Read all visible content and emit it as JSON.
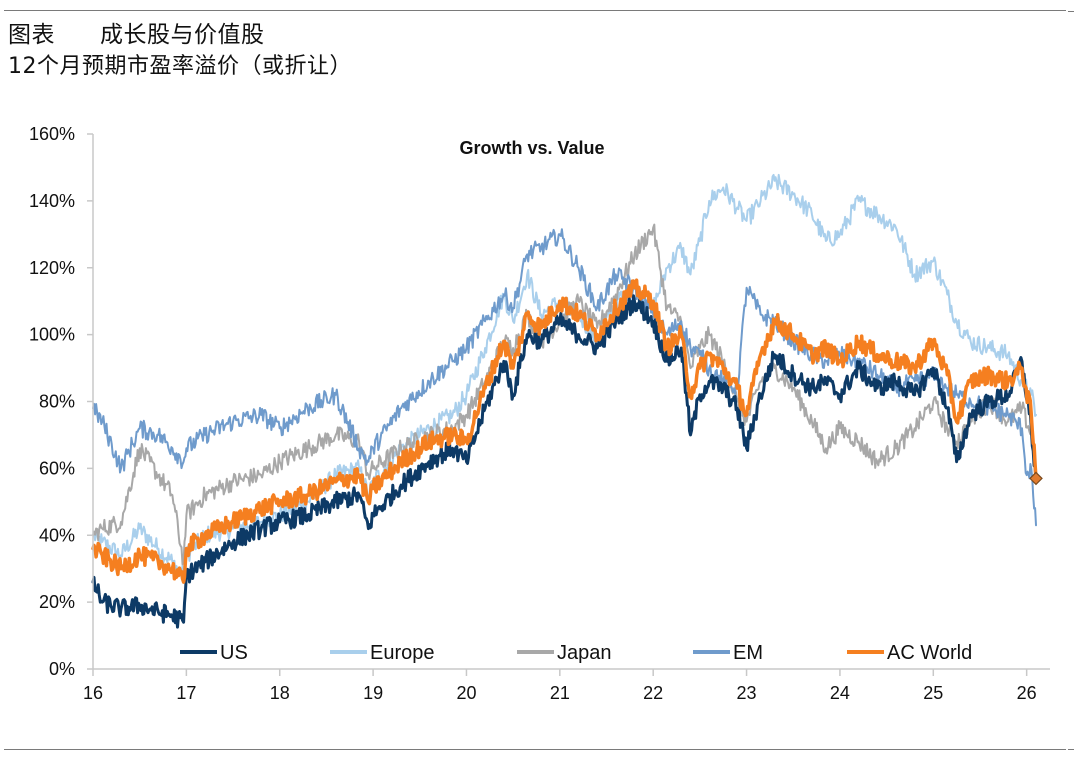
{
  "header": {
    "label": "图表",
    "title": "成长股与价值股",
    "subtitle": "12个月预期市盈率溢价（或折让）"
  },
  "chart_data": {
    "type": "line",
    "title": "Growth vs. Value",
    "xlabel": "",
    "ylabel": "",
    "xlim": [
      16,
      26.25
    ],
    "ylim": [
      0,
      160
    ],
    "x_ticks": [
      16,
      17,
      18,
      19,
      20,
      21,
      22,
      23,
      24,
      25,
      26
    ],
    "x_tick_labels": [
      "16",
      "17",
      "18",
      "19",
      "20",
      "21",
      "22",
      "23",
      "24",
      "25",
      "26"
    ],
    "y_ticks": [
      0,
      20,
      40,
      60,
      80,
      100,
      120,
      140,
      160
    ],
    "y_tick_labels": [
      "0%",
      "20%",
      "40%",
      "60%",
      "80%",
      "100%",
      "120%",
      "140%",
      "160%"
    ],
    "legend_position": "bottom-inside",
    "series": [
      {
        "name": "US",
        "color": "#0d3a66",
        "width": 3,
        "x": [
          16,
          16.1,
          16.3,
          16.5,
          16.7,
          16.85,
          16.97,
          17.0,
          17.2,
          17.5,
          17.8,
          18.0,
          18.3,
          18.6,
          18.85,
          18.95,
          19.0,
          19.3,
          19.6,
          19.85,
          20.0,
          20.2,
          20.4,
          20.5,
          20.65,
          20.8,
          21.0,
          21.2,
          21.4,
          21.6,
          21.8,
          22.0,
          22.15,
          22.3,
          22.4,
          22.5,
          22.6,
          22.75,
          22.9,
          23.0,
          23.15,
          23.3,
          23.5,
          23.7,
          23.85,
          24.0,
          24.2,
          24.4,
          24.6,
          24.8,
          25.0,
          25.15,
          25.25,
          25.4,
          25.6,
          25.8,
          25.95,
          26.05,
          26.1
        ],
        "y": [
          26,
          20,
          18,
          19,
          17,
          16,
          14,
          28,
          32,
          38,
          42,
          44,
          46,
          50,
          52,
          42,
          46,
          55,
          62,
          66,
          62,
          78,
          92,
          82,
          100,
          98,
          104,
          100,
          96,
          104,
          110,
          104,
          92,
          96,
          70,
          82,
          86,
          84,
          78,
          66,
          82,
          94,
          88,
          84,
          86,
          82,
          90,
          84,
          86,
          82,
          90,
          78,
          62,
          76,
          80,
          82,
          92,
          72,
          56
        ]
      },
      {
        "name": "Europe",
        "color": "#a9cfec",
        "width": 2,
        "x": [
          16,
          16.1,
          16.3,
          16.5,
          16.7,
          16.85,
          16.97,
          17.0,
          17.2,
          17.5,
          17.8,
          18.0,
          18.3,
          18.6,
          18.85,
          18.95,
          19.0,
          19.3,
          19.6,
          19.85,
          20.0,
          20.2,
          20.4,
          20.5,
          20.65,
          20.8,
          21.0,
          21.2,
          21.4,
          21.6,
          21.8,
          22.0,
          22.15,
          22.3,
          22.4,
          22.5,
          22.6,
          22.75,
          22.9,
          23.0,
          23.15,
          23.3,
          23.5,
          23.7,
          23.85,
          24.0,
          24.2,
          24.4,
          24.6,
          24.8,
          25.0,
          25.15,
          25.25,
          25.4,
          25.6,
          25.8,
          25.95,
          26.05,
          26.1
        ],
        "y": [
          40,
          38,
          34,
          42,
          36,
          32,
          28,
          34,
          40,
          42,
          44,
          46,
          50,
          58,
          60,
          52,
          56,
          66,
          72,
          76,
          82,
          96,
          112,
          104,
          118,
          106,
          110,
          106,
          98,
          110,
          114,
          108,
          120,
          126,
          118,
          128,
          140,
          144,
          138,
          134,
          140,
          146,
          142,
          136,
          128,
          130,
          140,
          136,
          132,
          118,
          122,
          112,
          104,
          98,
          96,
          94,
          86,
          82,
          76
        ]
      },
      {
        "name": "Japan",
        "color": "#a8a8a8",
        "width": 2,
        "x": [
          16,
          16.1,
          16.3,
          16.5,
          16.7,
          16.85,
          16.97,
          17.0,
          17.2,
          17.5,
          17.8,
          18.0,
          18.3,
          18.6,
          18.85,
          18.95,
          19.0,
          19.3,
          19.6,
          19.85,
          20.0,
          20.2,
          20.4,
          20.5,
          20.65,
          20.8,
          21.0,
          21.2,
          21.4,
          21.6,
          21.8,
          22.0,
          22.15,
          22.3,
          22.4,
          22.5,
          22.6,
          22.75,
          22.9,
          23.0,
          23.15,
          23.3,
          23.5,
          23.7,
          23.85,
          24.0,
          24.2,
          24.4,
          24.6,
          24.8,
          25.0,
          25.15,
          25.25,
          25.4,
          25.6,
          25.8,
          25.95,
          26.05,
          26.1
        ],
        "y": [
          40,
          42,
          44,
          66,
          58,
          52,
          32,
          46,
          52,
          56,
          58,
          62,
          66,
          70,
          68,
          58,
          60,
          66,
          70,
          72,
          76,
          86,
          98,
          96,
          106,
          98,
          104,
          110,
          102,
          112,
          124,
          132,
          108,
          104,
          90,
          96,
          100,
          92,
          80,
          74,
          86,
          90,
          84,
          74,
          66,
          72,
          68,
          62,
          66,
          72,
          80,
          72,
          68,
          74,
          80,
          74,
          78,
          70,
          60
        ]
      },
      {
        "name": "EM",
        "color": "#6f9bcc",
        "width": 2,
        "x": [
          16,
          16.1,
          16.3,
          16.5,
          16.7,
          16.85,
          16.97,
          17.0,
          17.2,
          17.5,
          17.8,
          18.0,
          18.3,
          18.6,
          18.85,
          18.95,
          19.0,
          19.3,
          19.6,
          19.85,
          20.0,
          20.2,
          20.4,
          20.5,
          20.65,
          20.8,
          21.0,
          21.2,
          21.4,
          21.6,
          21.8,
          22.0,
          22.15,
          22.3,
          22.4,
          22.5,
          22.6,
          22.75,
          22.9,
          23.0,
          23.15,
          23.3,
          23.5,
          23.7,
          23.85,
          24.0,
          24.2,
          24.4,
          24.6,
          24.8,
          25.0,
          25.15,
          25.25,
          25.4,
          25.6,
          25.8,
          25.95,
          26.0,
          26.05,
          26.08,
          26.1
        ],
        "y": [
          78,
          74,
          60,
          72,
          70,
          66,
          62,
          66,
          70,
          74,
          76,
          72,
          78,
          82,
          66,
          62,
          66,
          78,
          86,
          92,
          96,
          104,
          112,
          108,
          124,
          126,
          130,
          120,
          108,
          118,
          114,
          106,
          100,
          104,
          96,
          94,
          90,
          86,
          84,
          114,
          106,
          104,
          98,
          94,
          92,
          94,
          92,
          88,
          84,
          86,
          88,
          84,
          82,
          80,
          78,
          76,
          72,
          58,
          60,
          48,
          43
        ]
      },
      {
        "name": "AC World",
        "color": "#f57f20",
        "width": 3.5,
        "x": [
          16,
          16.1,
          16.3,
          16.5,
          16.7,
          16.85,
          16.97,
          17.0,
          17.2,
          17.5,
          17.8,
          18.0,
          18.3,
          18.6,
          18.85,
          18.95,
          19.0,
          19.3,
          19.6,
          19.85,
          20.0,
          20.2,
          20.4,
          20.5,
          20.65,
          20.8,
          21.0,
          21.2,
          21.4,
          21.6,
          21.8,
          22.0,
          22.15,
          22.3,
          22.4,
          22.5,
          22.6,
          22.75,
          22.9,
          23.0,
          23.15,
          23.3,
          23.5,
          23.7,
          23.85,
          24.0,
          24.2,
          24.4,
          24.6,
          24.8,
          25.0,
          25.15,
          25.25,
          25.4,
          25.6,
          25.8,
          25.95,
          26.05,
          26.1
        ],
        "y": [
          36,
          34,
          30,
          34,
          32,
          30,
          26,
          36,
          40,
          44,
          48,
          50,
          52,
          56,
          58,
          50,
          54,
          62,
          68,
          70,
          68,
          84,
          98,
          90,
          106,
          102,
          110,
          106,
          100,
          108,
          114,
          110,
          96,
          100,
          82,
          90,
          94,
          90,
          84,
          76,
          94,
          104,
          100,
          94,
          96,
          92,
          98,
          94,
          92,
          90,
          98,
          88,
          74,
          86,
          88,
          86,
          90,
          76,
          57
        ]
      }
    ],
    "end_marker": {
      "x": 26.1,
      "y": 57,
      "fill": "#e07a2e",
      "stroke": "#7a4a1e"
    }
  }
}
